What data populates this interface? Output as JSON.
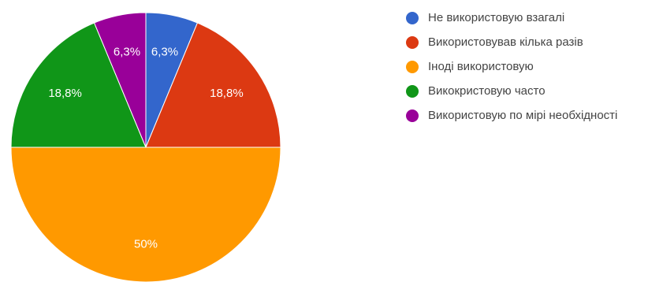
{
  "chart_data": {
    "type": "pie",
    "title": "",
    "start_angle_deg": 90,
    "direction": "clockwise",
    "legend_position": "right",
    "slices": [
      {
        "label": "Не використовую взагалі",
        "value": 6.25,
        "display": "6,3%",
        "color": "#3366cc"
      },
      {
        "label": "Використовував кілька разів",
        "value": 18.75,
        "display": "18,8%",
        "color": "#dc3912"
      },
      {
        "label": "Іноді використовую",
        "value": 50,
        "display": "50%",
        "color": "#ff9900"
      },
      {
        "label": "Викокристовую часто",
        "value": 18.75,
        "display": "18,8%",
        "color": "#109618"
      },
      {
        "label": "Використовую по мірі необхідності",
        "value": 6.25,
        "display": "6,3%",
        "color": "#990099"
      }
    ]
  }
}
